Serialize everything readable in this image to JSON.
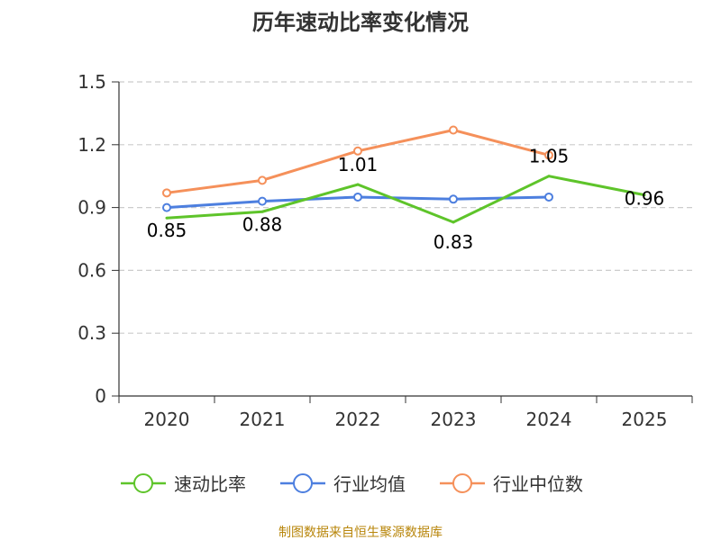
{
  "chart_data": {
    "type": "line",
    "title": "历年速动比率变化情况",
    "categories": [
      "2020",
      "2021",
      "2022",
      "2023",
      "2024",
      "2025"
    ],
    "ylim": [
      0,
      1.5
    ],
    "yticks": [
      "0",
      "0.3",
      "0.6",
      "0.9",
      "1.2",
      "1.5"
    ],
    "grid": true,
    "legend_position": "bottom",
    "series": [
      {
        "name": "速动比率",
        "color": "#5ec42a",
        "values": [
          0.85,
          0.88,
          1.01,
          0.83,
          1.05,
          0.96
        ],
        "labels": [
          "0.85",
          "0.88",
          "1.01",
          "0.83",
          "1.05",
          "0.96"
        ]
      },
      {
        "name": "行业均值",
        "color": "#4d7fdf",
        "values": [
          0.9,
          0.93,
          0.95,
          0.94,
          0.95,
          null
        ]
      },
      {
        "name": "行业中位数",
        "color": "#f5905a",
        "values": [
          0.97,
          1.03,
          1.17,
          1.27,
          1.15,
          null
        ]
      }
    ]
  },
  "source": "制图数据来自恒生聚源数据库"
}
